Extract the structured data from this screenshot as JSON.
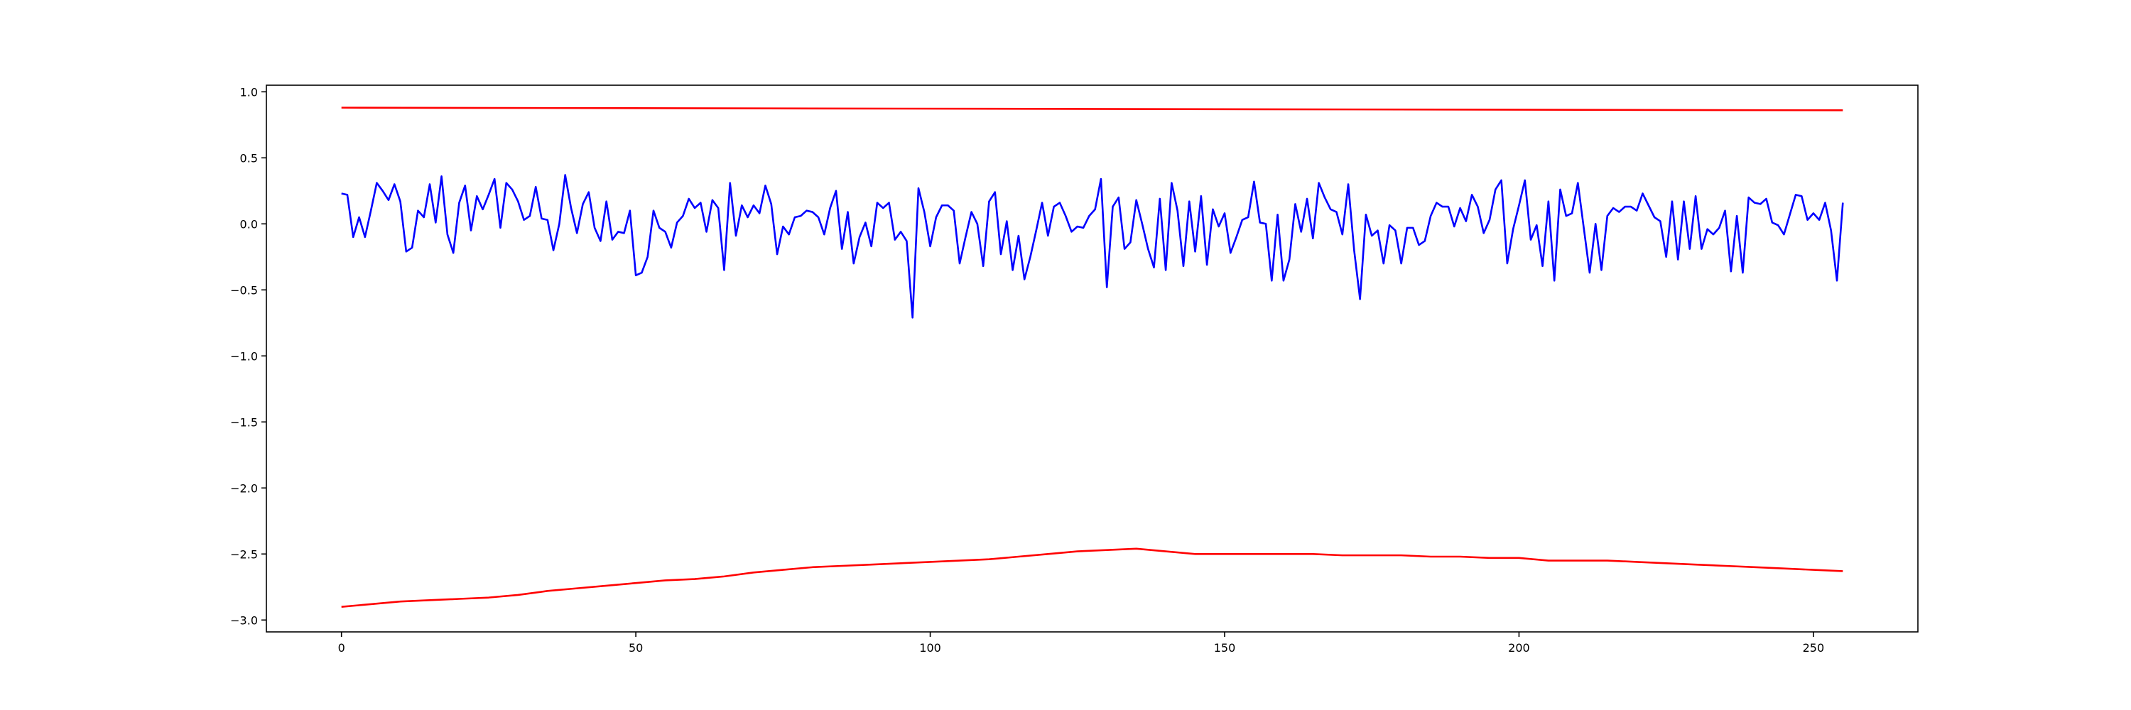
{
  "chart_data": {
    "type": "line",
    "title": "",
    "xlabel": "",
    "ylabel": "",
    "xlim": [
      -12.75,
      267.75
    ],
    "ylim": [
      -3.09,
      1.05
    ],
    "grid": false,
    "legend": "none",
    "x_ticks": [
      0,
      50,
      100,
      150,
      200,
      250
    ],
    "x_tick_labels": [
      "0",
      "50",
      "100",
      "150",
      "200",
      "250"
    ],
    "y_ticks": [
      1.0,
      0.5,
      0.0,
      -0.5,
      -1.0,
      -1.5,
      -2.0,
      -2.5,
      -3.0
    ],
    "y_tick_labels": [
      "1.0",
      "0.5",
      "0.0",
      "−0.5",
      "−1.0",
      "−1.5",
      "−2.0",
      "−2.5",
      "−3.0"
    ],
    "series": [
      {
        "color": "#ff0000",
        "x_start": 0,
        "x_step": 1,
        "values": [
          0.88,
          0.86
        ]
      },
      {
        "color": "#0000ff",
        "x_start": 0,
        "x_step": 1,
        "values": [
          0.23,
          0.22,
          -0.1,
          0.05,
          -0.1,
          0.1,
          0.31,
          0.25,
          0.18,
          0.3,
          0.17,
          -0.21,
          -0.18,
          0.1,
          0.05,
          0.3,
          0.01,
          0.36,
          -0.08,
          -0.22,
          0.16,
          0.29,
          -0.05,
          0.21,
          0.11,
          0.22,
          0.34,
          -0.03,
          0.31,
          0.26,
          0.17,
          0.03,
          0.06,
          0.28,
          0.04,
          0.03,
          -0.2,
          0.0,
          0.37,
          0.12,
          -0.07,
          0.15,
          0.24,
          -0.03,
          -0.13,
          0.17,
          -0.12,
          -0.06,
          -0.07,
          0.1,
          -0.39,
          -0.37,
          -0.25,
          0.1,
          -0.03,
          -0.06,
          -0.18,
          0.01,
          0.06,
          0.19,
          0.12,
          0.16,
          -0.06,
          0.18,
          0.12,
          -0.35,
          0.31,
          -0.09,
          0.14,
          0.05,
          0.14,
          0.08,
          0.29,
          0.15,
          -0.23,
          -0.02,
          -0.08,
          0.05,
          0.06,
          0.1,
          0.09,
          0.05,
          -0.08,
          0.12,
          0.25,
          -0.19,
          0.09,
          -0.3,
          -0.1,
          0.01,
          -0.17,
          0.16,
          0.12,
          0.16,
          -0.12,
          -0.06,
          -0.13,
          -0.71,
          0.27,
          0.09,
          -0.17,
          0.05,
          0.14,
          0.14,
          0.1,
          -0.3,
          -0.1,
          0.09,
          0.0,
          -0.32,
          0.17,
          0.24,
          -0.23,
          0.02,
          -0.35,
          -0.09,
          -0.42,
          -0.25,
          -0.05,
          0.16,
          -0.09,
          0.13,
          0.16,
          0.06,
          -0.06,
          -0.02,
          -0.03,
          0.06,
          0.11,
          0.34,
          -0.48,
          0.13,
          0.2,
          -0.19,
          -0.14,
          0.18,
          0.0,
          -0.19,
          -0.33,
          0.19,
          -0.35,
          0.31,
          0.1,
          -0.32,
          0.17,
          -0.21,
          0.21,
          -0.31,
          0.11,
          -0.02,
          0.08,
          -0.22,
          -0.1,
          0.03,
          0.05,
          0.32,
          0.01,
          0.0,
          -0.43,
          0.07,
          -0.43,
          -0.27,
          0.15,
          -0.06,
          0.19,
          -0.11,
          0.31,
          0.2,
          0.11,
          0.09,
          -0.08,
          0.3,
          -0.2,
          -0.57,
          0.07,
          -0.09,
          -0.05,
          -0.3,
          -0.01,
          -0.05,
          -0.3,
          -0.03,
          -0.03,
          -0.16,
          -0.13,
          0.06,
          0.16,
          0.13,
          0.13,
          -0.02,
          0.12,
          0.02,
          0.22,
          0.13,
          -0.07,
          0.03,
          0.26,
          0.33,
          -0.3,
          -0.04,
          0.14,
          0.33,
          -0.12,
          -0.01,
          -0.32,
          0.17,
          -0.43,
          0.26,
          0.06,
          0.08,
          0.31,
          -0.03,
          -0.37,
          0.0,
          -0.35,
          0.06,
          0.12,
          0.09,
          0.13,
          0.13,
          0.1,
          0.23,
          0.14,
          0.05,
          0.02,
          -0.25,
          0.17,
          -0.27,
          0.17,
          -0.19,
          0.21,
          -0.19,
          -0.04,
          -0.08,
          -0.03,
          0.1,
          -0.36,
          0.06,
          -0.37,
          0.2,
          0.16,
          0.15,
          0.19,
          0.01,
          -0.01,
          -0.08,
          0.07,
          0.22,
          0.21,
          0.03,
          0.08,
          0.03,
          0.16,
          -0.05,
          -0.43,
          0.16
        ]
      },
      {
        "color": "#ff0000",
        "x_start": 0,
        "x_step": 5,
        "values": [
          -2.9,
          -2.88,
          -2.86,
          -2.85,
          -2.84,
          -2.83,
          -2.81,
          -2.78,
          -2.76,
          -2.74,
          -2.72,
          -2.7,
          -2.69,
          -2.67,
          -2.64,
          -2.62,
          -2.6,
          -2.59,
          -2.58,
          -2.57,
          -2.56,
          -2.55,
          -2.54,
          -2.52,
          -2.5,
          -2.48,
          -2.47,
          -2.46,
          -2.48,
          -2.5,
          -2.5,
          -2.5,
          -2.5,
          -2.5,
          -2.51,
          -2.51,
          -2.51,
          -2.52,
          -2.52,
          -2.53,
          -2.53,
          -2.55,
          -2.55,
          -2.55,
          -2.56,
          -2.57,
          -2.58,
          -2.59,
          -2.6,
          -2.61,
          -2.62,
          -2.63
        ]
      }
    ]
  }
}
